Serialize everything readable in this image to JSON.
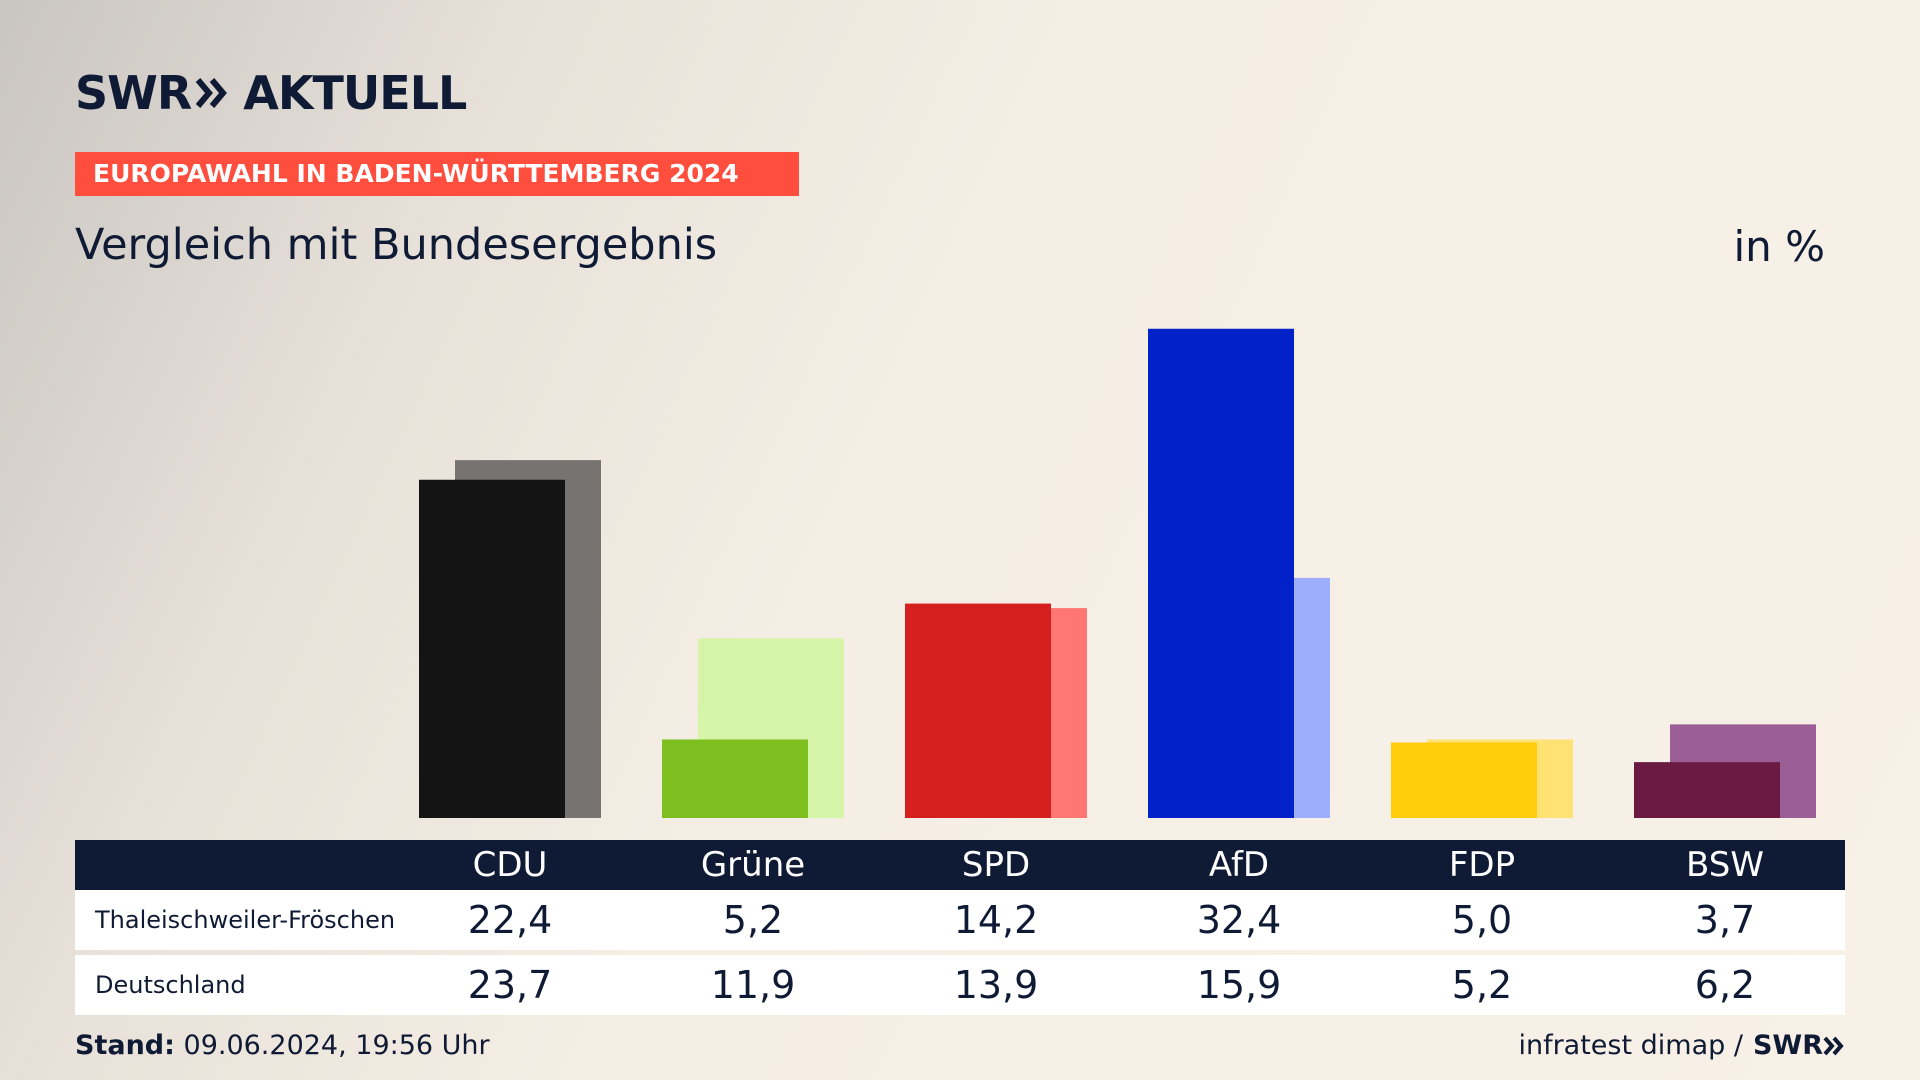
{
  "brand": {
    "logo_swr": "SWR",
    "logo_aktuell": "AKTUELL"
  },
  "banner": "EUROPAWAHL IN BADEN-WÜRTTEMBERG 2024",
  "subtitle": "Vergleich mit Bundesergebnis",
  "unit": "in %",
  "table": {
    "row_labels": [
      "Thaleischweiler-Fröschen",
      "Deutschland"
    ]
  },
  "footer": {
    "stand_label": "Stand:",
    "stand_value": "09.06.2024, 19:56 Uhr",
    "source": "infratest dimap /",
    "source_brand": "SWR"
  },
  "colors": {
    "CDU": [
      "#141414",
      "#767370"
    ],
    "Grüne": [
      "#7cbf1f",
      "#d6f5a8"
    ],
    "SPD": [
      "#d61f1f",
      "#ff7672"
    ],
    "AfD": [
      "#0022c8",
      "#9eaeff"
    ],
    "FDP": [
      "#ffcd0c",
      "#ffe273"
    ],
    "BSW": [
      "#6b1b42",
      "#9c5e97"
    ]
  },
  "chart_data": {
    "type": "bar",
    "categories": [
      "CDU",
      "Grüne",
      "SPD",
      "AfD",
      "FDP",
      "BSW"
    ],
    "series": [
      {
        "name": "Thaleischweiler-Fröschen",
        "values": [
          22.4,
          5.2,
          14.2,
          32.4,
          5.0,
          3.7
        ]
      },
      {
        "name": "Deutschland",
        "values": [
          23.7,
          11.9,
          13.9,
          15.9,
          5.2,
          6.2
        ]
      }
    ],
    "labels": {
      "CDU": [
        "22,4",
        "23,7"
      ],
      "Grüne": [
        "5,2",
        "11,9"
      ],
      "SPD": [
        "14,2",
        "13,9"
      ],
      "AfD": [
        "32,4",
        "15,9"
      ],
      "FDP": [
        "5,0",
        "5,2"
      ],
      "BSW": [
        "3,7",
        "6,2"
      ]
    },
    "title": "Vergleich mit Bundesergebnis",
    "ylabel": "in %",
    "grid": false,
    "legend": "table-below"
  }
}
